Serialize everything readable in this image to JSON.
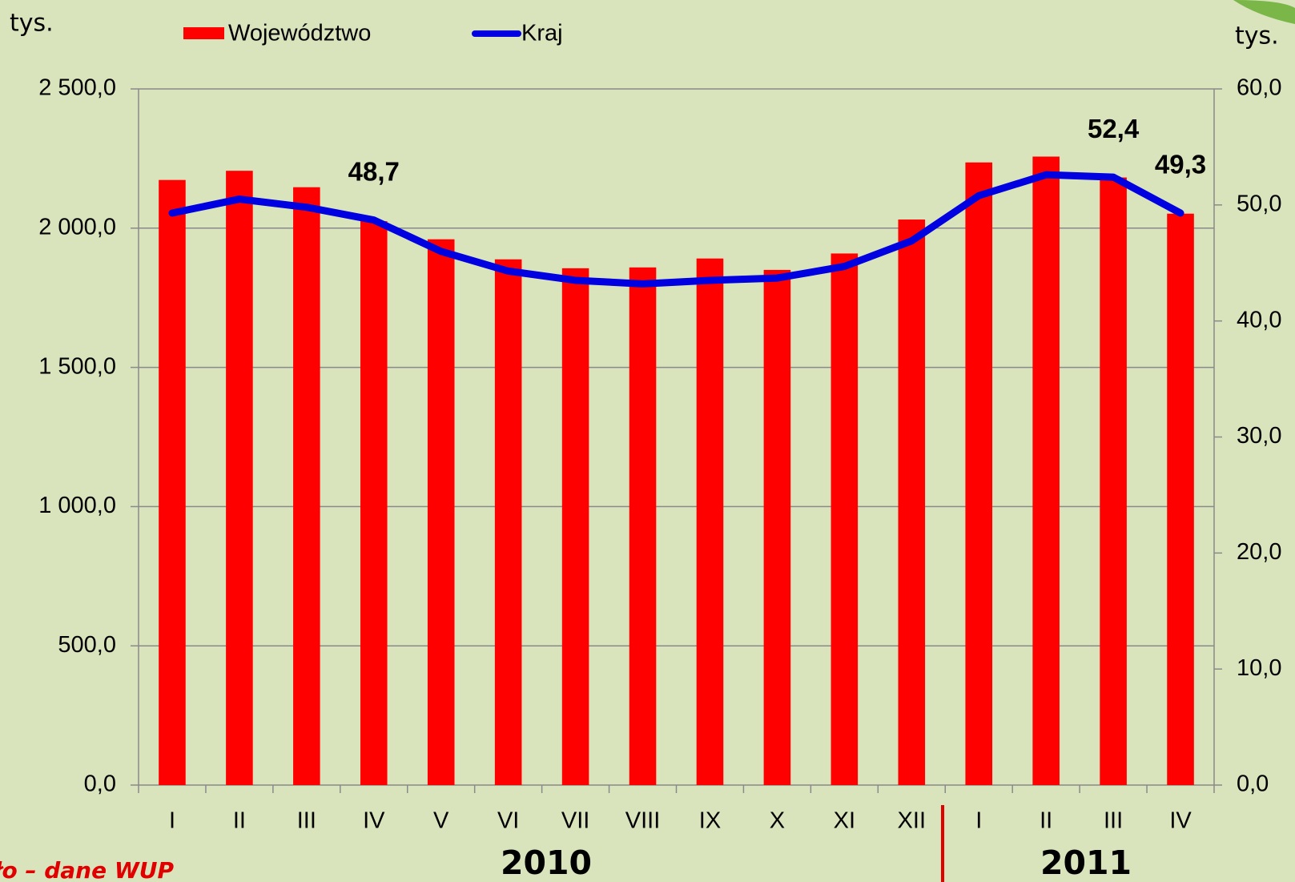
{
  "chart_data": {
    "type": "bar_line",
    "ylabel": "tys.",
    "y2label": "tys.",
    "categories": [
      "I",
      "II",
      "III",
      "IV",
      "V",
      "VI",
      "VII",
      "VIII",
      "IX",
      "X",
      "XI",
      "XII",
      "I",
      "II",
      "III",
      "IV"
    ],
    "year_labels": [
      "2010",
      "2011"
    ],
    "source": "ło – dane WUP",
    "series": [
      {
        "name": "Województwo",
        "color": "#ff0000",
        "kind": "bar",
        "values": [
          2173,
          2206,
          2147,
          2025,
          1960,
          1888,
          1856,
          1859,
          1891,
          1850,
          1909,
          2031,
          2236,
          2257,
          2182,
          2052
        ]
      },
      {
        "name": "Kraj",
        "color": "#0000e0",
        "kind": "line",
        "axis": "y2",
        "values": [
          49.3,
          50.5,
          49.8,
          48.7,
          46.0,
          44.3,
          43.5,
          43.2,
          43.5,
          43.7,
          44.7,
          46.9,
          50.8,
          52.6,
          52.4,
          49.3
        ],
        "value_labels": [
          null,
          null,
          null,
          "48,7",
          null,
          null,
          null,
          null,
          null,
          null,
          null,
          null,
          null,
          null,
          "52,4",
          "49,3"
        ]
      }
    ],
    "ylim": [
      0,
      2500
    ],
    "yticks": [
      {
        "value": 0,
        "label": "0,0"
      },
      {
        "value": 500,
        "label": "500,0"
      },
      {
        "value": 1000,
        "label": "1 000,0"
      },
      {
        "value": 1500,
        "label": "1 500,0"
      },
      {
        "value": 2000,
        "label": "2 000,0"
      },
      {
        "value": 2500,
        "label": "2 500,0"
      }
    ],
    "y2lim": [
      0,
      60
    ],
    "y2ticks": [
      {
        "value": 0,
        "label": "0,0"
      },
      {
        "value": 10,
        "label": "10,0"
      },
      {
        "value": 20,
        "label": "20,0"
      },
      {
        "value": 30,
        "label": "30,0"
      },
      {
        "value": 40,
        "label": "40,0"
      },
      {
        "value": 50,
        "label": "50,0"
      },
      {
        "value": 60,
        "label": "60,0"
      }
    ],
    "grid": true
  }
}
